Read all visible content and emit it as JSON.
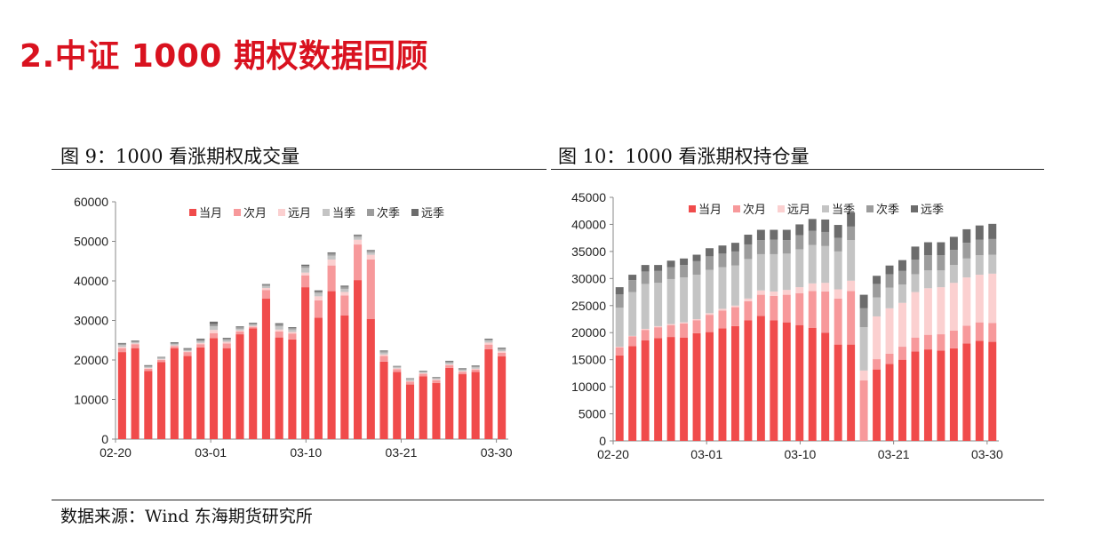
{
  "page_title": "2.中证 1000 期权数据回顾",
  "source": "数据来源：Wind 东海期货研究所",
  "colors": {
    "title_red": "#d9121f",
    "series": [
      "#f04b4b",
      "#f7999b",
      "#fbd0d0",
      "#c4c4c4",
      "#9c9c9c",
      "#6c6c6c"
    ]
  },
  "chart_data": [
    {
      "type": "bar",
      "stacked": true,
      "title": "图 9：1000 看涨期权成交量",
      "x_tick_labels": [
        "02-20",
        "03-01",
        "03-10",
        "03-21",
        "03-30"
      ],
      "x_tick_indices": [
        0,
        8,
        16,
        24,
        32
      ],
      "ylim": [
        0,
        60000
      ],
      "yticks": [
        0,
        10000,
        20000,
        30000,
        40000,
        50000,
        60000
      ],
      "legend": [
        "当月",
        "次月",
        "远月",
        "当季",
        "次季",
        "远季"
      ],
      "legend_position": "top",
      "grid": false,
      "series": [
        {
          "name": "当月",
          "values": [
            22000,
            23000,
            17200,
            19500,
            23000,
            21000,
            23200,
            25500,
            23000,
            26500,
            28000,
            35500,
            25700,
            25200,
            38400,
            30700,
            37400,
            31300,
            40200,
            30400,
            19600,
            17000,
            13800,
            15900,
            14200,
            18000,
            16400,
            17000,
            22700,
            20900
          ]
        },
        {
          "name": "次月",
          "values": [
            1000,
            1000,
            600,
            500,
            500,
            1000,
            800,
            1300,
            1200,
            700,
            400,
            2200,
            1500,
            1500,
            3000,
            4400,
            6500,
            5000,
            9000,
            15000,
            1400,
            700,
            700,
            600,
            700,
            700,
            600,
            600,
            1200,
            900
          ]
        },
        {
          "name": "远月",
          "values": [
            300,
            200,
            200,
            200,
            200,
            200,
            300,
            800,
            400,
            300,
            200,
            500,
            500,
            400,
            700,
            1000,
            1500,
            900,
            1200,
            1200,
            400,
            200,
            200,
            200,
            200,
            200,
            200,
            200,
            500,
            400
          ]
        },
        {
          "name": "当季",
          "values": [
            500,
            300,
            300,
            300,
            300,
            300,
            400,
            900,
            400,
            400,
            300,
            500,
            800,
            600,
            1200,
            800,
            1000,
            800,
            700,
            600,
            500,
            300,
            400,
            300,
            300,
            400,
            300,
            400,
            500,
            400
          ]
        },
        {
          "name": "次季",
          "values": [
            300,
            200,
            200,
            200,
            300,
            300,
            400,
            600,
            400,
            400,
            300,
            300,
            500,
            400,
            500,
            400,
            500,
            500,
            400,
            400,
            300,
            200,
            200,
            200,
            200,
            300,
            200,
            200,
            300,
            300
          ]
        },
        {
          "name": "远季",
          "values": [
            200,
            200,
            200,
            100,
            200,
            200,
            300,
            600,
            200,
            200,
            200,
            200,
            300,
            200,
            300,
            300,
            300,
            300,
            200,
            200,
            200,
            100,
            100,
            100,
            100,
            200,
            200,
            200,
            200,
            200
          ]
        }
      ]
    },
    {
      "type": "bar",
      "stacked": true,
      "title": "图 10：1000 看涨期权持仓量",
      "x_tick_labels": [
        "02-20",
        "03-01",
        "03-10",
        "03-21",
        "03-30"
      ],
      "x_tick_indices": [
        0,
        8,
        16,
        24,
        32
      ],
      "ylim": [
        0,
        45000
      ],
      "yticks": [
        0,
        5000,
        10000,
        15000,
        20000,
        25000,
        30000,
        35000,
        40000,
        45000
      ],
      "legend": [
        "当月",
        "次月",
        "远月",
        "当季",
        "次季",
        "远季"
      ],
      "legend_position": "top",
      "grid": false,
      "series": [
        {
          "name": "当月",
          "values": [
            15800,
            17500,
            18600,
            19000,
            19200,
            19100,
            19900,
            20100,
            20800,
            21200,
            22300,
            23100,
            22300,
            21900,
            21400,
            20900,
            20000,
            17800,
            17800,
            0,
            13200,
            14200,
            15000,
            16500,
            16900,
            16700,
            17100,
            18000,
            18500,
            18300
          ]
        },
        {
          "name": "次月",
          "values": [
            1500,
            1800,
            1900,
            2000,
            2200,
            2600,
            2400,
            3200,
            3300,
            3500,
            3500,
            3900,
            4500,
            5100,
            5900,
            6800,
            7600,
            8500,
            9900,
            11200,
            1900,
            1900,
            2400,
            2600,
            2700,
            3000,
            3300,
            3300,
            3400,
            3500
          ]
        },
        {
          "name": "远月",
          "values": [
            100,
            100,
            200,
            200,
            200,
            200,
            200,
            300,
            300,
            300,
            500,
            800,
            800,
            900,
            1100,
            1400,
            1600,
            1700,
            1900,
            1800,
            7900,
            8400,
            8100,
            8400,
            8600,
            8700,
            8800,
            8900,
            8800,
            9100
          ]
        },
        {
          "name": "当季",
          "values": [
            7200,
            8100,
            8300,
            8000,
            8300,
            8300,
            8200,
            8000,
            7700,
            7400,
            7300,
            6700,
            6900,
            6700,
            7000,
            7100,
            6800,
            7000,
            7500,
            8000,
            3500,
            3800,
            3400,
            3300,
            3300,
            3100,
            3300,
            3500,
            3600,
            3500
          ]
        },
        {
          "name": "次季",
          "values": [
            2500,
            2200,
            2300,
            2200,
            2200,
            2300,
            2500,
            2500,
            2500,
            2600,
            2700,
            2600,
            2700,
            2500,
            2600,
            2600,
            2600,
            2500,
            2500,
            3500,
            2500,
            2500,
            2500,
            2700,
            2800,
            2800,
            2800,
            2900,
            2900,
            2900
          ]
        },
        {
          "name": "远季",
          "values": [
            1300,
            1000,
            1200,
            1100,
            1200,
            1200,
            1200,
            1500,
            1500,
            1600,
            1800,
            1900,
            1800,
            1900,
            2000,
            2200,
            2300,
            2400,
            2600,
            2500,
            1500,
            1600,
            2000,
            2400,
            2400,
            2400,
            2400,
            2500,
            2600,
            2800
          ]
        }
      ]
    }
  ]
}
